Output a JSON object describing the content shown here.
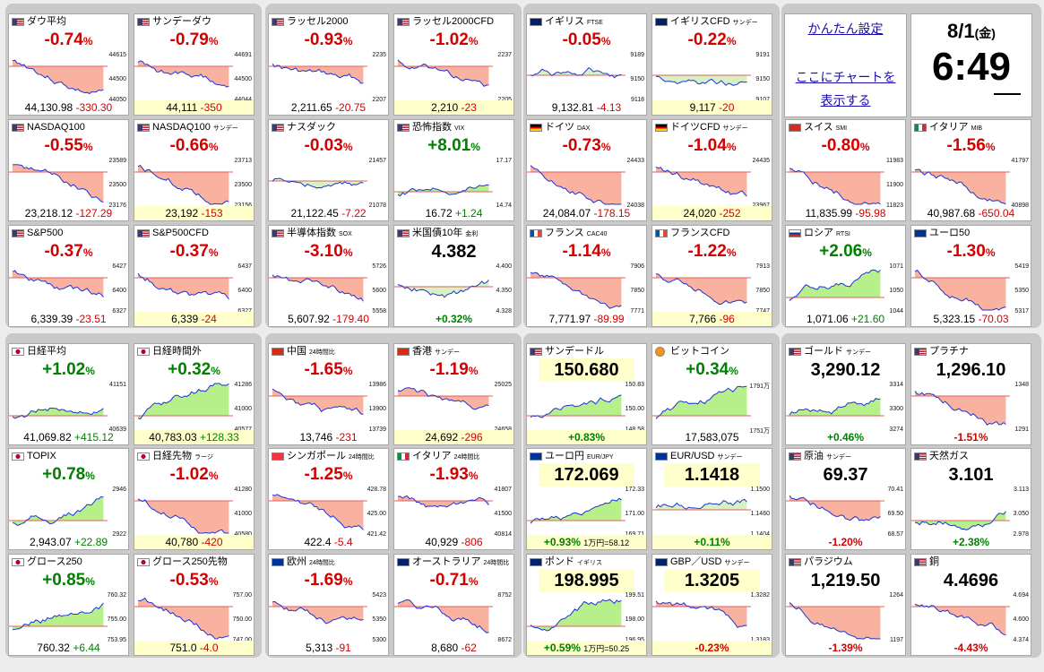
{
  "colors": {
    "up": "#008000",
    "down": "#d40000",
    "upFill": "#b7ef8a",
    "downFill": "#f9b1a0",
    "line": "#1c33d6"
  },
  "tiles": [
    {
      "flag": "us",
      "title": "ダウ平均",
      "sub": "",
      "chg": "-0.74",
      "price": "44,130.98",
      "diff": "-330.30",
      "axis": [
        "44615",
        "44500",
        "44050"
      ],
      "trend": "down"
    },
    {
      "flag": "us",
      "title": "サンデーダウ",
      "sub": "",
      "chg": "-0.79",
      "price": "44,111",
      "diff": "-350",
      "axis": [
        "44691",
        "44500",
        "44044"
      ],
      "trend": "down",
      "yb": true
    },
    {
      "flag": "us",
      "title": "ラッセル2000",
      "sub": "",
      "chg": "-0.93",
      "price": "2,211.65",
      "diff": "-20.75",
      "axis": [
        "2235",
        "2207"
      ],
      "trend": "down"
    },
    {
      "flag": "us",
      "title": "ラッセル2000CFD",
      "sub": "",
      "chg": "-1.02",
      "price": "2,210",
      "diff": "-23",
      "axis": [
        "2237",
        "2205"
      ],
      "trend": "down",
      "yb": true
    },
    {
      "flag": "gb",
      "title": "イギリス",
      "sub": "FTSE",
      "chg": "-0.05",
      "price": "9,132.81",
      "diff": "-4.13",
      "axis": [
        "9189",
        "9150",
        "9118"
      ],
      "trend": "flat"
    },
    {
      "flag": "gb",
      "title": "イギリスCFD",
      "sub": "サンデー",
      "chg": "-0.22",
      "price": "9,117",
      "diff": "-20",
      "axis": [
        "9191",
        "9150",
        "9107"
      ],
      "trend": "flat",
      "yb": true
    },
    {
      "flag": "us",
      "title": "NASDAQ100",
      "sub": "",
      "chg": "-0.55",
      "price": "23,218.12",
      "diff": "-127.29",
      "axis": [
        "23589",
        "23500",
        "23176"
      ],
      "trend": "down"
    },
    {
      "flag": "us",
      "title": "NASDAQ100",
      "sub": "サンデー",
      "chg": "-0.66",
      "price": "23,192",
      "diff": "-153",
      "axis": [
        "23713",
        "23500",
        "23156"
      ],
      "trend": "down",
      "yb": true
    },
    {
      "flag": "us",
      "title": "ナスダック",
      "sub": "",
      "chg": "-0.03",
      "price": "21,122.45",
      "diff": "-7.22",
      "axis": [
        "21457",
        "21078"
      ],
      "trend": "flat"
    },
    {
      "flag": "us",
      "title": "恐怖指数",
      "sub": "VIX",
      "chg": "+8.01",
      "price": "16.72",
      "diff": "+1.24",
      "axis": [
        "17.17",
        "14.74"
      ],
      "trend": "up"
    },
    {
      "flag": "de",
      "title": "ドイツ",
      "sub": "DAX",
      "chg": "-0.73",
      "price": "24,084.07",
      "diff": "-178.15",
      "axis": [
        "24433",
        "24038"
      ],
      "trend": "down"
    },
    {
      "flag": "de",
      "title": "ドイツCFD",
      "sub": "サンデー",
      "chg": "-1.04",
      "price": "24,020",
      "diff": "-252",
      "axis": [
        "24435",
        "23967"
      ],
      "trend": "down",
      "yb": true
    },
    {
      "flag": "ch",
      "title": "スイス",
      "sub": "SMI",
      "chg": "-0.80",
      "price": "11,835.99",
      "diff": "-95.98",
      "axis": [
        "11983",
        "11900",
        "11823"
      ],
      "trend": "down"
    },
    {
      "flag": "it",
      "title": "イタリア",
      "sub": "MIB",
      "chg": "-1.56",
      "price": "40,987.68",
      "diff": "-650.04",
      "axis": [
        "41797",
        "40898"
      ],
      "trend": "down"
    },
    {
      "flag": "us",
      "title": "S&P500",
      "sub": "",
      "chg": "-0.37",
      "price": "6,339.39",
      "diff": "-23.51",
      "axis": [
        "6427",
        "6400",
        "6327"
      ],
      "trend": "down"
    },
    {
      "flag": "us",
      "title": "S&P500CFD",
      "sub": "",
      "chg": "-0.37",
      "price": "6,339",
      "diff": "-24",
      "axis": [
        "6437",
        "6400",
        "6327"
      ],
      "trend": "down",
      "yb": true
    },
    {
      "flag": "us",
      "title": "半導体指数",
      "sub": "SOX",
      "chg": "-3.10",
      "price": "5,607.92",
      "diff": "-179.40",
      "axis": [
        "5726",
        "5600",
        "5558"
      ],
      "trend": "down"
    },
    {
      "flag": "us",
      "title": "米国債10年",
      "sub": "金利",
      "big": "4.382",
      "diff": "+0.32%",
      "axis": [
        "4.400",
        "4.350",
        "4.328"
      ],
      "trend": "flat"
    },
    {
      "flag": "fr",
      "title": "フランス",
      "sub": "CAC40",
      "chg": "-1.14",
      "price": "7,771.97",
      "diff": "-89.99",
      "axis": [
        "7906",
        "7850",
        "7771"
      ],
      "trend": "down"
    },
    {
      "flag": "fr",
      "title": "フランスCFD",
      "sub": "",
      "chg": "-1.22",
      "price": "7,766",
      "diff": "-96",
      "axis": [
        "7913",
        "7850",
        "7747"
      ],
      "trend": "down",
      "yb": true
    },
    {
      "flag": "ru",
      "title": "ロシア",
      "sub": "RTSI",
      "chg": "+2.06",
      "price": "1,071.06",
      "diff": "+21.60",
      "axis": [
        "1071",
        "1050",
        "1044"
      ],
      "trend": "up"
    },
    {
      "flag": "eu",
      "title": "ユーロ50",
      "sub": "",
      "chg": "-1.30",
      "price": "5,323.15",
      "diff": "-70.03",
      "axis": [
        "5419",
        "5350",
        "5317"
      ],
      "trend": "down"
    },
    {
      "flag": "jp",
      "title": "日経平均",
      "sub": "",
      "chg": "+1.02",
      "price": "41,069.82",
      "diff": "+415.12",
      "axis": [
        "41151",
        "40639"
      ],
      "trend": "up"
    },
    {
      "flag": "jp",
      "title": "日経時間外",
      "sub": "",
      "chg": "+0.32",
      "price": "40,783.03",
      "diff": "+128.33",
      "axis": [
        "41286",
        "41000",
        "40577"
      ],
      "trend": "up",
      "yb": true
    },
    {
      "flag": "cn",
      "title": "中国",
      "sub": "24時間比",
      "chg": "-1.65",
      "price": "13,746",
      "diff": "-231",
      "axis": [
        "13986",
        "13900",
        "13739"
      ],
      "trend": "down"
    },
    {
      "flag": "hk",
      "title": "香港",
      "sub": "サンデー",
      "chg": "-1.19",
      "price": "24,692",
      "diff": "-296",
      "axis": [
        "25025",
        "24658"
      ],
      "trend": "down",
      "yb": true
    },
    {
      "flag": "us",
      "title": "サンデードル",
      "sub": "",
      "big": "150.680",
      "diff": "+0.83%",
      "axis": [
        "150.83",
        "150.00",
        "148.58"
      ],
      "trend": "up",
      "yb": true
    },
    {
      "flag": "bt",
      "title": "ビットコイン",
      "sub": "",
      "chg": "+0.34",
      "price": "17,583,075",
      "diff": "",
      "axis": [
        "1791万",
        "1751万"
      ],
      "trend": "up"
    },
    {
      "flag": "us",
      "title": "ゴールド",
      "sub": "サンデー",
      "big": "3,290.12",
      "diff": "+0.46%",
      "axis": [
        "3314",
        "3300",
        "3274"
      ],
      "trend": "up"
    },
    {
      "flag": "us",
      "title": "プラチナ",
      "sub": "",
      "big": "1,296.10",
      "diff": "-1.51%",
      "axis": [
        "1348",
        "1291"
      ],
      "trend": "down"
    },
    {
      "flag": "jp",
      "title": "TOPIX",
      "sub": "",
      "chg": "+0.78",
      "price": "2,943.07",
      "diff": "+22.89",
      "axis": [
        "2946",
        "2922"
      ],
      "trend": "up"
    },
    {
      "flag": "jp",
      "title": "日経先物",
      "sub": "ラージ",
      "chg": "-1.02",
      "price": "40,780",
      "diff": "-420",
      "axis": [
        "41280",
        "41000",
        "40580"
      ],
      "trend": "down",
      "yb": true
    },
    {
      "flag": "sg",
      "title": "シンガポール",
      "sub": "24時間比",
      "chg": "-1.25",
      "price": "422.4",
      "diff": "-5.4",
      "axis": [
        "428.78",
        "425.00",
        "421.42"
      ],
      "trend": "down"
    },
    {
      "flag": "it",
      "title": "イタリア",
      "sub": "24時間比",
      "chg": "-1.93",
      "price": "40,929",
      "diff": "-806",
      "axis": [
        "41807",
        "41500",
        "40814"
      ],
      "trend": "down"
    },
    {
      "flag": "eu",
      "title": "ユーロ円",
      "sub": "EUR/JPY",
      "big": "172.069",
      "diff": "+0.93%",
      "extra": "1万円=58.12",
      "axis": [
        "172.33",
        "171.00",
        "169.71"
      ],
      "trend": "up",
      "yb": true
    },
    {
      "flag": "eu",
      "title": "EUR/USD",
      "sub": "サンデー",
      "big": "1.1418",
      "diff": "+0.11%",
      "axis": [
        "1.1500",
        "1.1460",
        "1.1404"
      ],
      "trend": "flat",
      "yb": true
    },
    {
      "flag": "us",
      "title": "原油",
      "sub": "サンデー",
      "big": "69.37",
      "diff": "-1.20%",
      "axis": [
        "70.41",
        "69.50",
        "68.57"
      ],
      "trend": "down"
    },
    {
      "flag": "us",
      "title": "天然ガス",
      "sub": "",
      "big": "3.101",
      "diff": "+2.38%",
      "axis": [
        "3.113",
        "3.050",
        "2.978"
      ],
      "trend": "up"
    },
    {
      "flag": "jp",
      "title": "グロース250",
      "sub": "",
      "chg": "+0.85",
      "price": "760.32",
      "diff": "+6.44",
      "axis": [
        "760.32",
        "755.00",
        "753.95"
      ],
      "trend": "up"
    },
    {
      "flag": "jp",
      "title": "グロース250先物",
      "sub": "",
      "chg": "-0.53",
      "price": "751.0",
      "diff": "-4.0",
      "axis": [
        "757.00",
        "750.00",
        "747.00"
      ],
      "trend": "down",
      "yb": true
    },
    {
      "flag": "eu",
      "title": "欧州",
      "sub": "24時間比",
      "chg": "-1.69",
      "price": "5,313",
      "diff": "-91",
      "axis": [
        "5423",
        "5350",
        "5300"
      ],
      "trend": "down"
    },
    {
      "flag": "au",
      "title": "オーストラリア",
      "sub": "24時間比",
      "chg": "-0.71",
      "price": "8,680",
      "diff": "-62",
      "axis": [
        "8752",
        "8672"
      ],
      "trend": "down"
    },
    {
      "flag": "gb",
      "title": "ポンド",
      "sub": "イギリス",
      "big": "198.995",
      "diff": "+0.59%",
      "extra": "1万円=50.25",
      "axis": [
        "199.51",
        "198.00",
        "196.95"
      ],
      "trend": "up",
      "yb": true
    },
    {
      "flag": "gb",
      "title": "GBP／USD",
      "sub": "サンデー",
      "big": "1.3205",
      "diff": "-0.23%",
      "axis": [
        "1.3282",
        "1.3183"
      ],
      "trend": "down",
      "yb": true
    },
    {
      "flag": "us",
      "title": "パラジウム",
      "sub": "",
      "big": "1,219.50",
      "diff": "-1.39%",
      "axis": [
        "1264",
        "1197"
      ],
      "trend": "down"
    },
    {
      "flag": "us",
      "title": "銅",
      "sub": "",
      "big": "4.4696",
      "diff": "-4.43%",
      "axis": [
        "4.694",
        "4.600",
        "4.374"
      ],
      "trend": "down"
    }
  ],
  "side": {
    "settings": "かんたん設定",
    "chart1": "ここにチャートを",
    "chart2": "表示する",
    "date": "8/1",
    "dow": "(金)",
    "time": "6:49"
  }
}
